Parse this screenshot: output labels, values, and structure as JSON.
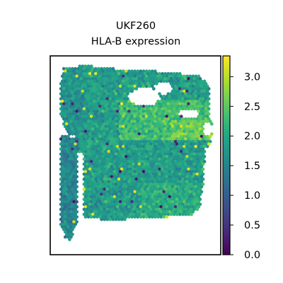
{
  "chart_data": {
    "type": "scatter",
    "subtype": "spatial-hexbin",
    "title": [
      "UKF260",
      "HLA-B expression"
    ],
    "xlabel": "",
    "ylabel": "",
    "axes_ticks_visible": false,
    "grid": false,
    "colorbar": {
      "colormap": "viridis",
      "range": [
        0.0,
        3.35
      ],
      "ticks": [
        0.0,
        0.5,
        1.0,
        1.5,
        2.0,
        2.5,
        3.0
      ],
      "tick_labels": [
        "0.0",
        "0.5",
        "1.0",
        "1.5",
        "2.0",
        "2.5",
        "3.0"
      ],
      "placement": "right"
    },
    "typical_value_range": [
      1.3,
      2.6
    ],
    "colors": {
      "low": "#440154",
      "mid": "#21918c",
      "high": "#fde725"
    }
  }
}
